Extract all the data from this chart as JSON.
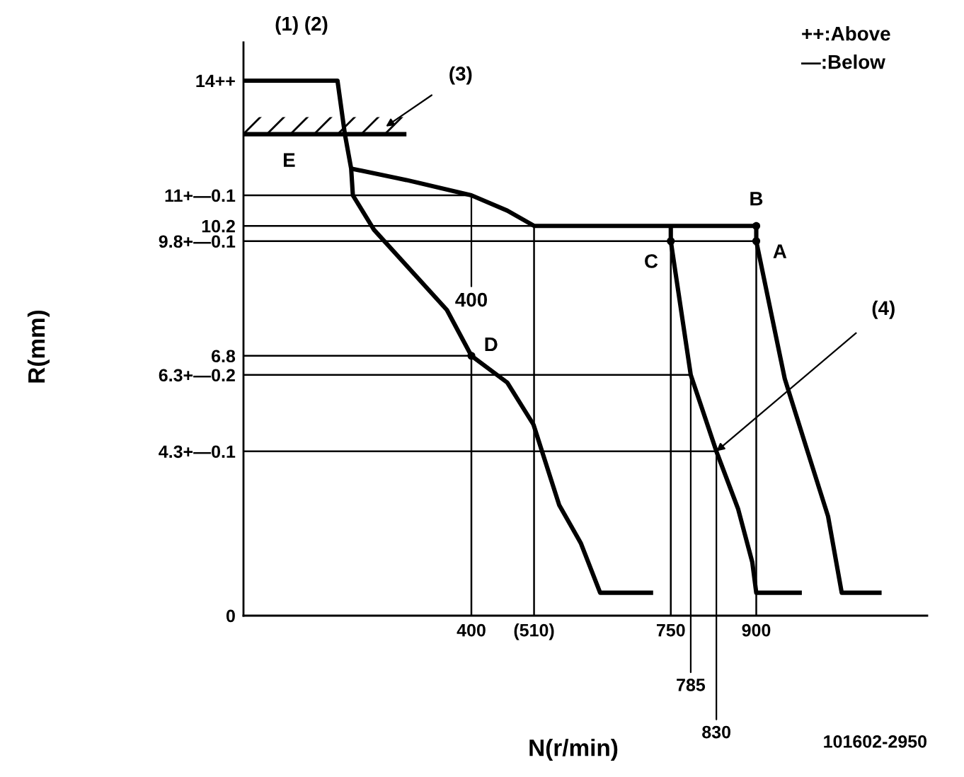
{
  "chart_data": {
    "type": "line",
    "xlabel": "N(r/min)",
    "ylabel": "R(mm)",
    "xlim": [
      0,
      1200
    ],
    "ylim": [
      0,
      15
    ],
    "xticks": [
      400,
      {
        "value": 510,
        "label": "(510)"
      },
      750,
      900
    ],
    "yticks": [
      0,
      {
        "value": 4.3,
        "label": "4.3+—0.1"
      },
      {
        "value": 6.3,
        "label": "6.3+—0.2"
      },
      6.8,
      {
        "value": 9.8,
        "label": "9.8+—0.1"
      },
      10.2,
      {
        "value": 11,
        "label": "11+—0.1"
      },
      {
        "value": 14,
        "label": "14++"
      }
    ],
    "series": [
      {
        "color": "#000000",
        "x": [
          0,
          165,
          178,
          189,
          192,
          229,
          357,
          400,
          463,
          509,
          554,
          592,
          626,
          719
        ],
        "values": [
          14,
          14,
          12.6,
          11.7,
          11.0,
          10.1,
          8.0,
          6.8,
          6.1,
          5.0,
          2.9,
          1.9,
          0.6,
          0.6
        ]
      },
      {
        "color": "#000000",
        "x": [
          189,
          286,
          400,
          463,
          510,
          900
        ],
        "values": [
          11.7,
          11.4,
          11.0,
          10.6,
          10.2,
          10.2
        ]
      },
      {
        "color": "#000000",
        "x": [
          750,
          750,
          785,
          830,
          868,
          893,
          900,
          980
        ],
        "values": [
          10.2,
          9.8,
          6.3,
          4.3,
          2.8,
          1.4,
          0.6,
          0.6
        ]
      },
      {
        "color": "#000000",
        "x": [
          900,
          900,
          950,
          990,
          1026,
          1050,
          1120
        ],
        "values": [
          10.2,
          9.8,
          6.2,
          4.3,
          2.6,
          0.6,
          0.6
        ]
      },
      {
        "color": "#000000",
        "x": [
          0,
          286
        ],
        "values": [
          12.6,
          12.6
        ]
      },
      {
        "type": "scatter",
        "marker": "circle",
        "color": "#000000",
        "x": [
          900,
          900,
          750,
          400
        ],
        "values": [
          10.2,
          9.8,
          9.8,
          6.8
        ]
      },
      {
        "color": "#000000",
        "x": [
          0,
          400
        ],
        "values": [
          11,
          11
        ]
      },
      {
        "color": "#000000",
        "x": [
          0,
          510
        ],
        "values": [
          10.2,
          10.2
        ]
      },
      {
        "color": "#000000",
        "x": [
          0,
          900
        ],
        "values": [
          9.8,
          9.8
        ]
      },
      {
        "color": "#000000",
        "x": [
          0,
          400,
          400
        ],
        "values": [
          6.8,
          6.8,
          0
        ]
      },
      {
        "color": "#000000",
        "x": [
          0,
          785
        ],
        "values": [
          6.3,
          6.3
        ]
      },
      {
        "color": "#000000",
        "x": [
          0,
          830
        ],
        "values": [
          4.3,
          4.3
        ]
      },
      {
        "color": "#000000",
        "x": [
          510,
          510
        ],
        "values": [
          10.2,
          0
        ]
      },
      {
        "color": "#000000",
        "x": [
          750,
          750
        ],
        "values": [
          9.8,
          0
        ]
      },
      {
        "color": "#000000",
        "x": [
          900,
          900
        ],
        "values": [
          9.8,
          0
        ]
      }
    ],
    "annotations": [
      "(1) (2)",
      "++:Above",
      "—:Below",
      {
        "text": "(3)",
        "x": 250,
        "y": 12.8
      },
      {
        "text": "E",
        "x": 80,
        "y": 12.6
      },
      {
        "text": "400",
        "x": 400,
        "y": 11
      },
      {
        "text": "B",
        "x": 900,
        "y": 10.2
      },
      {
        "text": "A",
        "x": 900,
        "y": 9.8
      },
      {
        "text": "C",
        "x": 750,
        "y": 9.8
      },
      {
        "text": "D",
        "x": 400,
        "y": 6.8
      },
      {
        "text": "(4)",
        "x": 830,
        "y": 4.3
      },
      {
        "text": "785",
        "x": 785,
        "y": 6.3
      },
      {
        "text": "830",
        "x": 830,
        "y": 4.3
      },
      "101602-2950"
    ]
  }
}
